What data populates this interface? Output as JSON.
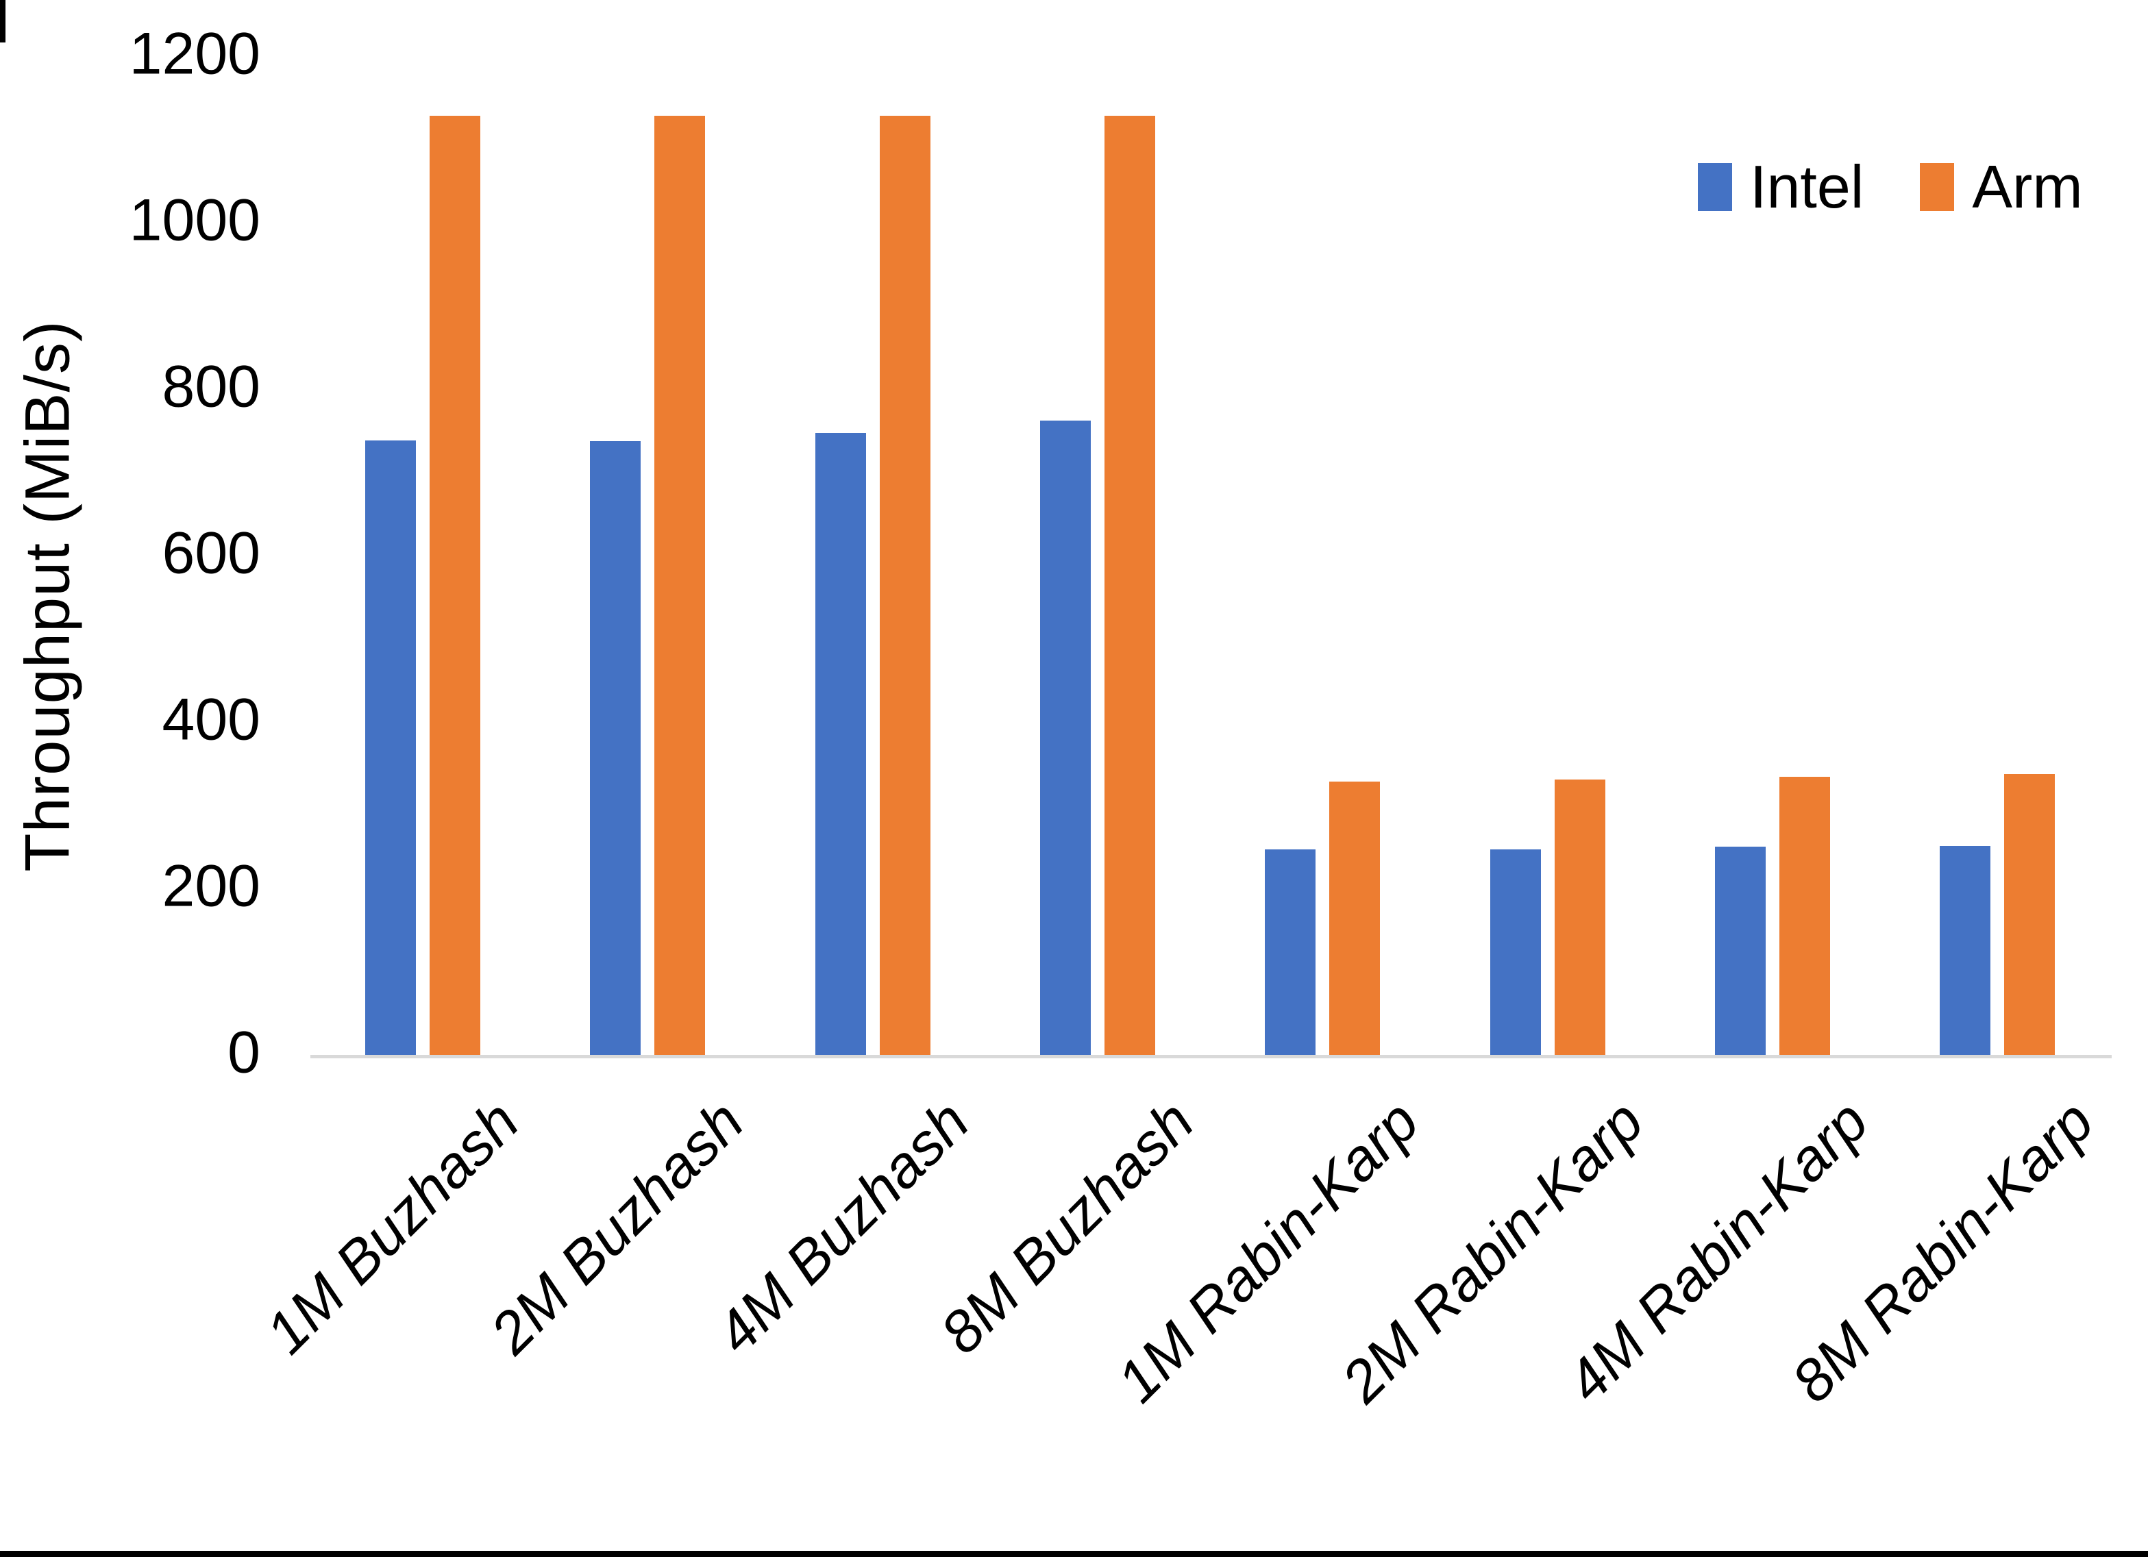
{
  "chart_data": {
    "type": "bar",
    "title": "",
    "xlabel": "",
    "ylabel": "Throughput (MiB/s)",
    "ylim": [
      0,
      1200
    ],
    "yticks": [
      0,
      200,
      400,
      600,
      800,
      1000,
      1200
    ],
    "grid": false,
    "legend_position": "top-right",
    "categories": [
      "1M Buzhash",
      "2M Buzhash",
      "4M Buzhash",
      "8M Buzhash",
      "1M Rabin-Karp",
      "2M Rabin-Karp",
      "4M Rabin-Karp",
      "8M Rabin-Karp"
    ],
    "series": [
      {
        "name": "Intel",
        "color": "#4472C4",
        "values": [
          738,
          737,
          747,
          762,
          247,
          247,
          250,
          251
        ]
      },
      {
        "name": "Arm",
        "color": "#ED7D31",
        "values": [
          1128,
          1128,
          1128,
          1128,
          328,
          331,
          334,
          337
        ]
      }
    ],
    "axis_line_color": "#D9D9D9",
    "text_color": "#000000"
  }
}
